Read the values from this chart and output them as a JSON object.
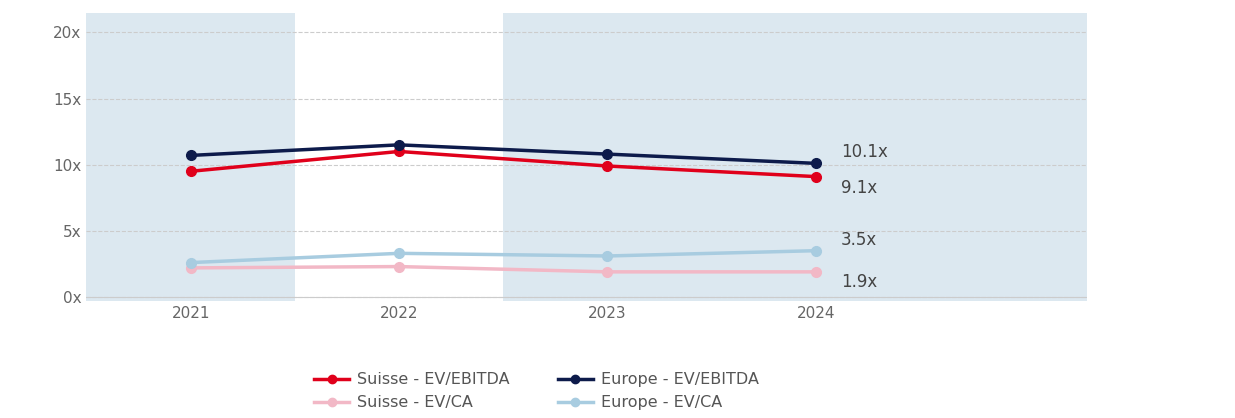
{
  "years": [
    2021,
    2022,
    2023,
    2024
  ],
  "suisse_ebitda": [
    9.5,
    11.0,
    9.9,
    9.1
  ],
  "suisse_ca": [
    2.2,
    2.3,
    1.9,
    1.9
  ],
  "europe_ebitda": [
    10.7,
    11.5,
    10.8,
    10.1
  ],
  "europe_ca": [
    2.6,
    3.3,
    3.1,
    3.5
  ],
  "end_labels": {
    "europe_ebitda": "10.1x",
    "suisse_ebitda": "9.1x",
    "europe_ca": "3.5x",
    "suisse_ca": "1.9x"
  },
  "colors": {
    "suisse_ebitda": "#e0001b",
    "suisse_ca": "#f2b8c6",
    "europe_ebitda": "#0d1b4b",
    "europe_ca": "#a8cce0"
  },
  "background_color": "#ffffff",
  "band_color": "#dce8f0",
  "yticks": [
    0,
    5,
    10,
    15,
    20
  ],
  "ylim": [
    -0.3,
    21.5
  ],
  "xlim_left": 2020.5,
  "xlim_right": 2025.3,
  "legend_row1": [
    {
      "label": "Suisse - EV/EBITDA",
      "color": "#e0001b"
    },
    {
      "label": "Suisse - EV/CA",
      "color": "#f2b8c6"
    }
  ],
  "legend_row2": [
    {
      "label": "Europe - EV/EBITDA",
      "color": "#0d1b4b"
    },
    {
      "label": "Europe - EV/CA",
      "color": "#a8cce0"
    }
  ]
}
